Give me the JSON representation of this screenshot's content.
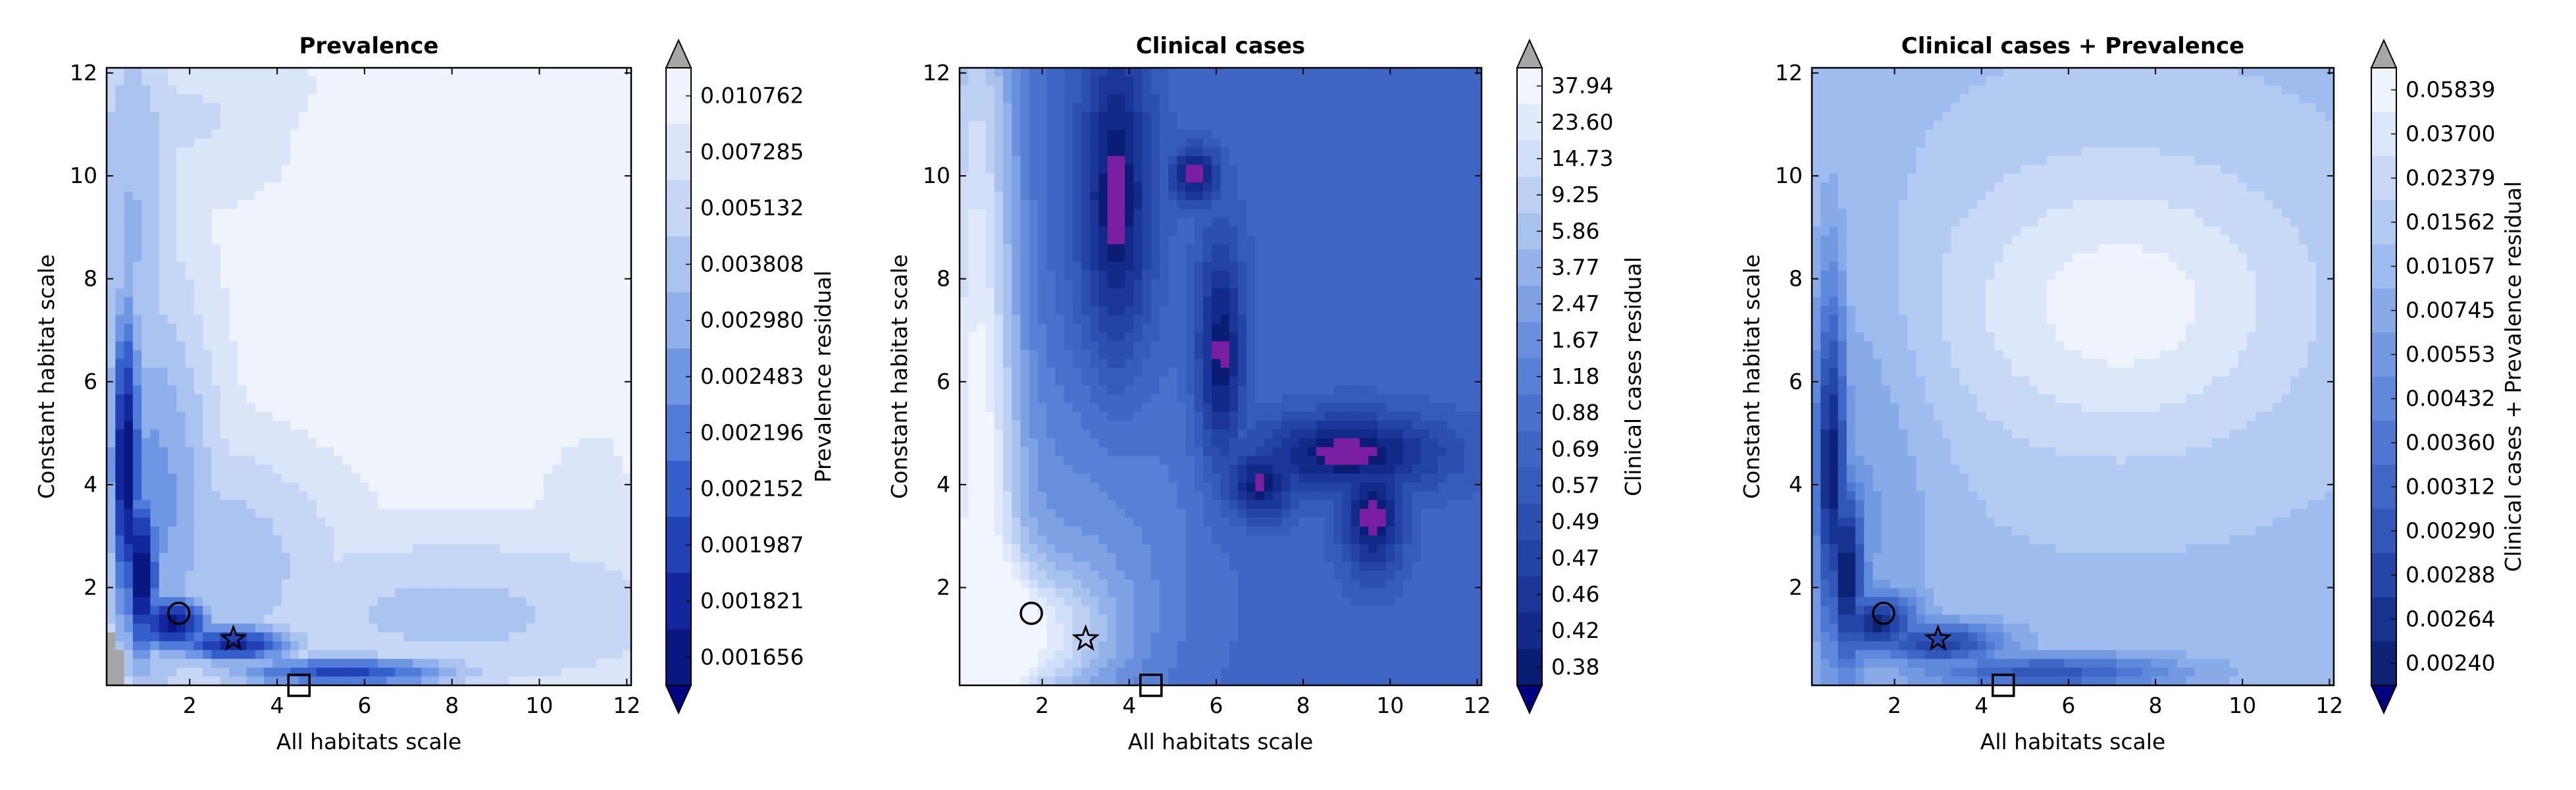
{
  "shared": {
    "xlabel": "All habitats scale",
    "ylabel": "Constant habitat scale",
    "x_ticks": [
      2,
      4,
      6,
      8,
      10,
      12
    ],
    "y_ticks": [
      2,
      4,
      6,
      8,
      10,
      12
    ],
    "xlim": [
      0.1,
      12.1
    ],
    "ylim": [
      0.1,
      12.1
    ],
    "markers": [
      {
        "symbol": "circle",
        "x": 1.75,
        "y": 1.5
      },
      {
        "symbol": "star",
        "x": 3.0,
        "y": 1.0
      },
      {
        "symbol": "square",
        "x": 4.5,
        "y": 0.1
      }
    ],
    "highlight_color": "#7b1fa2",
    "outside_color": "#a6a6a6"
  },
  "chart_data": [
    {
      "type": "heatmap",
      "title": "Prevalence",
      "colorbar_label": "Prevalence residual",
      "levels": [
        "0.010762",
        "0.007285",
        "0.005132",
        "0.003808",
        "0.002980",
        "0.002483",
        "0.002196",
        "0.002152",
        "0.001987",
        "0.001821",
        "0.001656"
      ],
      "colors": [
        "#eef3fc",
        "#dae6f8",
        "#c5d7f4",
        "#abc4ef",
        "#8fb0ea",
        "#6e96e2",
        "#4f7bd9",
        "#355fca",
        "#2241b5",
        "#13279c",
        "#0a1682"
      ],
      "background_level": 0.02,
      "highlight_level": 0.985,
      "features": [
        {
          "x": 0.55,
          "y": 4.5,
          "sx": 0.28,
          "sy": 2.6,
          "v": 1.0
        },
        {
          "x": 0.9,
          "y": 2.3,
          "sx": 0.32,
          "sy": 1.4,
          "v": 1.0
        },
        {
          "x": 1.6,
          "y": 1.3,
          "sx": 0.7,
          "sy": 0.45,
          "v": 0.95
        },
        {
          "x": 3.0,
          "y": 0.9,
          "sx": 1.1,
          "sy": 0.3,
          "v": 0.85
        },
        {
          "x": 5.5,
          "y": 0.35,
          "sx": 2.2,
          "sy": 0.25,
          "v": 0.75
        },
        {
          "x": 1.2,
          "y": 4.0,
          "sx": 1.2,
          "sy": 3.5,
          "v": 0.5
        },
        {
          "x": 2.5,
          "y": 2.5,
          "sx": 2.5,
          "sy": 2.0,
          "v": 0.35
        },
        {
          "x": 0.7,
          "y": 8.5,
          "sx": 0.9,
          "sy": 4.0,
          "v": 0.4
        },
        {
          "x": 8.0,
          "y": 1.5,
          "sx": 4.5,
          "sy": 1.3,
          "v": 0.3
        },
        {
          "x": 2.0,
          "y": 11.0,
          "sx": 2.5,
          "sy": 1.5,
          "v": 0.2
        },
        {
          "x": 11.0,
          "y": 3.5,
          "sx": 1.5,
          "sy": 3.0,
          "v": 0.12
        }
      ],
      "low_features": [
        {
          "x": 5.0,
          "y": 10.5,
          "sx": 0.4,
          "sy": 0.5
        },
        {
          "x": 4.4,
          "y": 8.0,
          "sx": 0.25,
          "sy": 0.6
        },
        {
          "x": 7.2,
          "y": 7.5,
          "sx": 3.0,
          "sy": 2.0
        }
      ]
    },
    {
      "type": "heatmap",
      "title": "Clinical cases",
      "colorbar_label": "Clinical cases residual",
      "levels": [
        "37.94",
        "23.60",
        "14.73",
        "9.25",
        "5.86",
        "3.77",
        "2.47",
        "1.67",
        "1.18",
        "0.88",
        "0.69",
        "0.57",
        "0.49",
        "0.47",
        "0.46",
        "0.42",
        "0.38"
      ],
      "colors": [
        "#f1f5fd",
        "#e1eafa",
        "#d0def7",
        "#bcd0f3",
        "#a8c2ee",
        "#92b2e9",
        "#7da1e3",
        "#698fdc",
        "#5880d4",
        "#4a72cc",
        "#3f66c4",
        "#355bbb",
        "#2d4fb1",
        "#2443a6",
        "#1b3698",
        "#122a88",
        "#0a1d75"
      ],
      "background_level": 0.62,
      "highlight_level": 0.965,
      "features": [
        {
          "x": 3.7,
          "y": 9.5,
          "sx": 0.6,
          "sy": 2.4,
          "v": 1.0
        },
        {
          "x": 6.1,
          "y": 6.5,
          "sx": 0.4,
          "sy": 1.6,
          "v": 1.0
        },
        {
          "x": 9.0,
          "y": 4.6,
          "sx": 1.6,
          "sy": 0.55,
          "v": 1.0
        },
        {
          "x": 9.6,
          "y": 3.4,
          "sx": 0.5,
          "sy": 0.8,
          "v": 1.0
        },
        {
          "x": 5.5,
          "y": 10.0,
          "sx": 0.4,
          "sy": 0.4,
          "v": 1.0
        },
        {
          "x": 7.0,
          "y": 4.0,
          "sx": 0.6,
          "sy": 0.5,
          "v": 1.0
        },
        {
          "x": 6.5,
          "y": 7.5,
          "sx": 3.0,
          "sy": 4.0,
          "v": 0.5
        },
        {
          "x": 0.5,
          "y": 6.0,
          "sx": 0.7,
          "sy": 8.0,
          "v": -0.55
        },
        {
          "x": 1.5,
          "y": 1.0,
          "sx": 1.5,
          "sy": 1.0,
          "v": -0.45
        },
        {
          "x": 3.0,
          "y": 3.0,
          "sx": 2.0,
          "sy": 2.5,
          "v": -0.18
        }
      ],
      "low_features": []
    },
    {
      "type": "heatmap",
      "title": "Clinical cases + Prevalence",
      "colorbar_label": "Clinical cases + Prevalence residual",
      "levels": [
        "0.05839",
        "0.03700",
        "0.02379",
        "0.01562",
        "0.01057",
        "0.00745",
        "0.00553",
        "0.00432",
        "0.00360",
        "0.00312",
        "0.00290",
        "0.00288",
        "0.00264",
        "0.00240"
      ],
      "colors": [
        "#eef3fc",
        "#dce7f9",
        "#c8d9f5",
        "#b3cbf1",
        "#9ebced",
        "#88abe7",
        "#739ae1",
        "#5f89da",
        "#4e78d1",
        "#3f67c6",
        "#3157b9",
        "#2346a8",
        "#16348f",
        "#0c2275"
      ],
      "background_level": 0.3,
      "highlight_level": 0.985,
      "features": [
        {
          "x": 0.55,
          "y": 4.5,
          "sx": 0.28,
          "sy": 2.6,
          "v": 1.0
        },
        {
          "x": 0.9,
          "y": 2.3,
          "sx": 0.32,
          "sy": 1.4,
          "v": 1.0
        },
        {
          "x": 1.6,
          "y": 1.3,
          "sx": 0.7,
          "sy": 0.45,
          "v": 0.95
        },
        {
          "x": 3.0,
          "y": 0.9,
          "sx": 1.1,
          "sy": 0.3,
          "v": 0.85
        },
        {
          "x": 5.5,
          "y": 0.35,
          "sx": 2.2,
          "sy": 0.25,
          "v": 0.75
        },
        {
          "x": 1.2,
          "y": 4.0,
          "sx": 1.2,
          "sy": 3.5,
          "v": 0.45
        },
        {
          "x": 2.5,
          "y": 2.5,
          "sx": 2.5,
          "sy": 2.0,
          "v": 0.3
        },
        {
          "x": 0.7,
          "y": 8.5,
          "sx": 0.9,
          "sy": 4.0,
          "v": 0.3
        },
        {
          "x": 8.0,
          "y": 1.5,
          "sx": 4.5,
          "sy": 1.3,
          "v": 0.15
        }
      ],
      "low_features": [
        {
          "x": 7.2,
          "y": 7.5,
          "sx": 3.0,
          "sy": 2.0
        }
      ]
    }
  ]
}
